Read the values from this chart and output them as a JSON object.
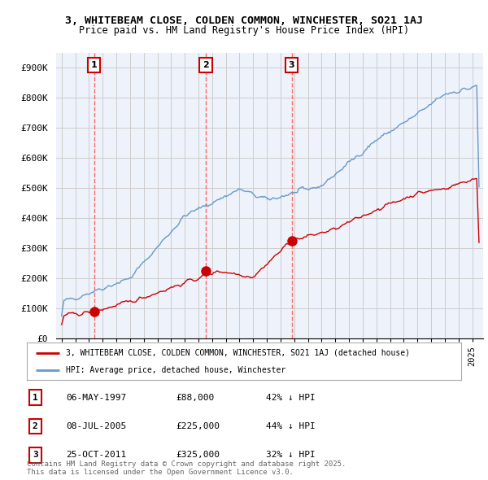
{
  "title_line1": "3, WHITEBEAM CLOSE, COLDEN COMMON, WINCHESTER, SO21 1AJ",
  "title_line2": "Price paid vs. HM Land Registry's House Price Index (HPI)",
  "ylim": [
    0,
    950000
  ],
  "ytick_values": [
    0,
    100000,
    200000,
    300000,
    400000,
    500000,
    600000,
    700000,
    800000,
    900000
  ],
  "ytick_labels": [
    "£0",
    "£100K",
    "£200K",
    "£300K",
    "£400K",
    "£500K",
    "£600K",
    "£700K",
    "£800K",
    "£900K"
  ],
  "x_start_year": 1995,
  "x_end_year": 2025,
  "sale_prices": [
    88000,
    225000,
    325000
  ],
  "sale_labels": [
    "1",
    "2",
    "3"
  ],
  "sale_date_strs": [
    "06-MAY-1997",
    "08-JUL-2005",
    "25-OCT-2011"
  ],
  "sale_price_strs": [
    "£88,000",
    "£225,000",
    "£325,000"
  ],
  "sale_hpi_strs": [
    "42% ↓ HPI",
    "44% ↓ HPI",
    "32% ↓ HPI"
  ],
  "sale_year_floats": [
    1997.37,
    2005.52,
    2011.81
  ],
  "red_line_color": "#cc0000",
  "blue_line_color": "#6699cc",
  "plot_bg_color": "#eef2fa",
  "legend_label_red": "3, WHITEBEAM CLOSE, COLDEN COMMON, WINCHESTER, SO21 1AJ (detached house)",
  "legend_label_blue": "HPI: Average price, detached house, Winchester",
  "footer_text": "Contains HM Land Registry data © Crown copyright and database right 2025.\nThis data is licensed under the Open Government Licence v3.0.",
  "dashed_line_color": "#ff6666",
  "grid_color": "#cccccc"
}
